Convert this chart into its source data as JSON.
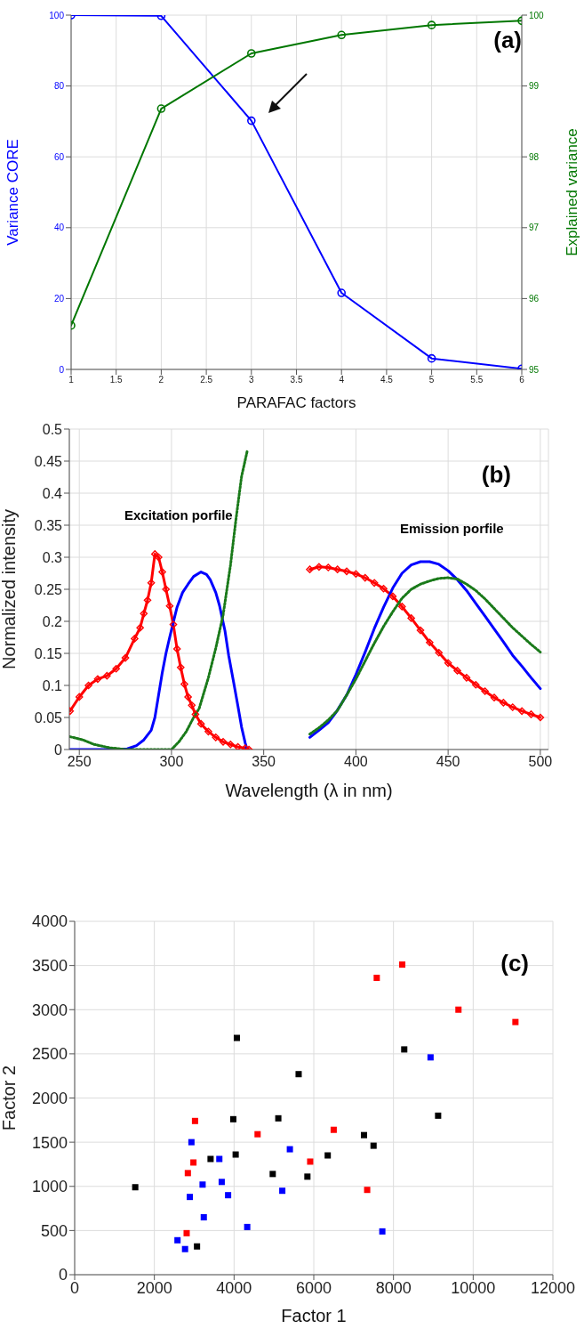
{
  "chart_data": [
    {
      "type": "line",
      "xlabel": "PARAFAC factors",
      "ylabel": "Variance CORE",
      "y2label": "Explained variance",
      "x": [
        1,
        2,
        3,
        4,
        5,
        6
      ],
      "series": [
        {
          "color": "#0000ff",
          "values": [
            100,
            99.8,
            70.2,
            21.6,
            3.1,
            0.2
          ]
        },
        {
          "color": "#007700",
          "axis": "y2",
          "values": [
            95.62,
            98.68,
            99.46,
            99.72,
            99.86,
            99.92
          ]
        }
      ],
      "xlim": [
        1,
        6
      ],
      "xticks": [
        1,
        1.5,
        2,
        2.5,
        3,
        3.5,
        4,
        4.5,
        5,
        5.5,
        6
      ],
      "ylim": [
        0,
        100
      ],
      "yticks": [
        0,
        20,
        40,
        60,
        80,
        100
      ],
      "y2lim": [
        95,
        100
      ],
      "y2ticks": [
        95,
        96,
        97,
        98,
        99,
        100
      ],
      "grid": true,
      "marker": "circle",
      "annotations": [
        "(a)"
      ]
    },
    {
      "type": "line",
      "xlabel": "Wavelength (λ in nm)",
      "ylabel": "Normalized intensity",
      "series": [
        {
          "color": "#ff0000",
          "marker": "diamond",
          "x": [
            245,
            250,
            255,
            260,
            265,
            270,
            275,
            280,
            283,
            285,
            287,
            289,
            291,
            293,
            295,
            297,
            299,
            301,
            303,
            305,
            307,
            309,
            311,
            313,
            316,
            320,
            324,
            328,
            332,
            336,
            340,
            342
          ],
          "values": [
            0.06,
            0.082,
            0.1,
            0.11,
            0.115,
            0.126,
            0.143,
            0.173,
            0.19,
            0.212,
            0.233,
            0.26,
            0.305,
            0.3,
            0.277,
            0.25,
            0.224,
            0.195,
            0.157,
            0.128,
            0.102,
            0.082,
            0.069,
            0.055,
            0.04,
            0.028,
            0.019,
            0.012,
            0.008,
            0.004,
            0.002,
            0
          ]
        },
        {
          "color": "#ff0000",
          "marker": "diamond",
          "x": [
            375,
            380,
            385,
            390,
            395,
            400,
            405,
            410,
            415,
            420,
            425,
            430,
            435,
            440,
            445,
            450,
            455,
            460,
            465,
            470,
            475,
            480,
            485,
            490,
            495,
            500
          ],
          "values": [
            0.281,
            0.285,
            0.284,
            0.281,
            0.278,
            0.274,
            0.268,
            0.26,
            0.251,
            0.239,
            0.223,
            0.205,
            0.186,
            0.167,
            0.151,
            0.135,
            0.123,
            0.112,
            0.101,
            0.091,
            0.081,
            0.073,
            0.066,
            0.06,
            0.055,
            0.05
          ]
        },
        {
          "color": "#0000ff",
          "x": [
            245,
            270,
            276,
            281,
            285,
            289,
            291,
            293,
            295,
            297,
            299,
            303,
            306,
            309,
            312,
            316,
            319,
            321,
            324,
            326,
            329,
            331,
            334,
            336,
            338,
            340,
            341
          ],
          "values": [
            0,
            0,
            0.001,
            0.006,
            0.015,
            0.03,
            0.05,
            0.085,
            0.12,
            0.15,
            0.175,
            0.222,
            0.245,
            0.258,
            0.27,
            0.277,
            0.273,
            0.265,
            0.245,
            0.225,
            0.185,
            0.147,
            0.1,
            0.068,
            0.035,
            0.01,
            0
          ]
        },
        {
          "color": "#0000ff",
          "x": [
            375,
            380,
            385,
            389,
            395,
            400,
            405,
            410,
            415,
            420,
            425,
            430,
            435,
            440,
            445,
            450,
            455,
            460,
            465,
            470,
            475,
            480,
            485,
            490,
            495,
            500
          ],
          "values": [
            0.019,
            0.03,
            0.042,
            0.057,
            0.085,
            0.117,
            0.152,
            0.189,
            0.222,
            0.252,
            0.275,
            0.288,
            0.293,
            0.293,
            0.289,
            0.279,
            0.265,
            0.248,
            0.228,
            0.208,
            0.188,
            0.168,
            0.147,
            0.13,
            0.112,
            0.095
          ]
        },
        {
          "color": "#1a7a1a",
          "line_style": "dotted",
          "x": [
            245,
            252,
            258,
            266,
            275,
            300,
            304,
            308,
            312,
            315,
            320,
            324,
            328,
            332,
            335,
            338,
            341
          ],
          "values": [
            0.02,
            0.015,
            0.008,
            0.003,
            0,
            0,
            0.012,
            0.028,
            0.05,
            0.064,
            0.112,
            0.158,
            0.21,
            0.288,
            0.36,
            0.426,
            0.465
          ]
        },
        {
          "color": "#1a7a1a",
          "line_style": "dotted",
          "x": [
            375,
            380,
            385,
            390,
            395,
            400,
            405,
            410,
            415,
            420,
            425,
            430,
            435,
            440,
            445,
            450,
            455,
            460,
            465,
            470,
            475,
            480,
            485,
            490,
            495,
            500
          ],
          "values": [
            0.024,
            0.034,
            0.046,
            0.061,
            0.085,
            0.11,
            0.138,
            0.166,
            0.192,
            0.215,
            0.236,
            0.25,
            0.258,
            0.263,
            0.267,
            0.268,
            0.266,
            0.258,
            0.248,
            0.235,
            0.22,
            0.205,
            0.19,
            0.177,
            0.164,
            0.152
          ]
        }
      ],
      "xlim": [
        244.6,
        504.4
      ],
      "xticks": [
        250,
        300,
        350,
        400,
        450,
        500
      ],
      "ylim": [
        0,
        0.5
      ],
      "yticks": [
        0,
        0.05,
        0.1,
        0.15,
        0.2,
        0.25,
        0.3,
        0.35,
        0.4,
        0.45,
        0.5
      ],
      "grid": true,
      "annotations": [
        "Excitation porfile",
        "Emission porfile",
        "(b)"
      ]
    },
    {
      "type": "scatter",
      "xlabel": "Factor 1",
      "ylabel": "Factor 2",
      "series": [
        {
          "color": "#ff0000",
          "x": [
            7580,
            8220,
            9630,
            11060,
            3020,
            4590,
            6500,
            5910,
            2980,
            2840,
            7340,
            2810
          ],
          "values": [
            3360,
            3510,
            3000,
            2860,
            1740,
            1590,
            1640,
            1280,
            1270,
            1150,
            960,
            470
          ]
        },
        {
          "color": "#000000",
          "x": [
            4070,
            8270,
            5620,
            9120,
            3980,
            5110,
            7260,
            7500,
            3410,
            4040,
            6350,
            4970,
            5840,
            1520,
            3070
          ],
          "values": [
            2680,
            2550,
            2270,
            1800,
            1760,
            1770,
            1580,
            1460,
            1310,
            1360,
            1350,
            1140,
            1110,
            990,
            320
          ]
        },
        {
          "color": "#0000ff",
          "x": [
            8930,
            2930,
            5400,
            3630,
            3690,
            3210,
            5210,
            2890,
            3850,
            3240,
            4330,
            7720,
            2580,
            2770
          ],
          "values": [
            2460,
            1500,
            1420,
            1310,
            1050,
            1020,
            950,
            880,
            900,
            650,
            540,
            490,
            390,
            290
          ]
        }
      ],
      "xlim": [
        0,
        12000
      ],
      "xticks": [
        0,
        2000,
        4000,
        6000,
        8000,
        10000,
        12000
      ],
      "ylim": [
        0,
        4000
      ],
      "yticks": [
        0,
        500,
        1000,
        1500,
        2000,
        2500,
        3000,
        3500,
        4000
      ],
      "grid": true,
      "marker": "square",
      "annotations": [
        "(c)"
      ]
    }
  ]
}
